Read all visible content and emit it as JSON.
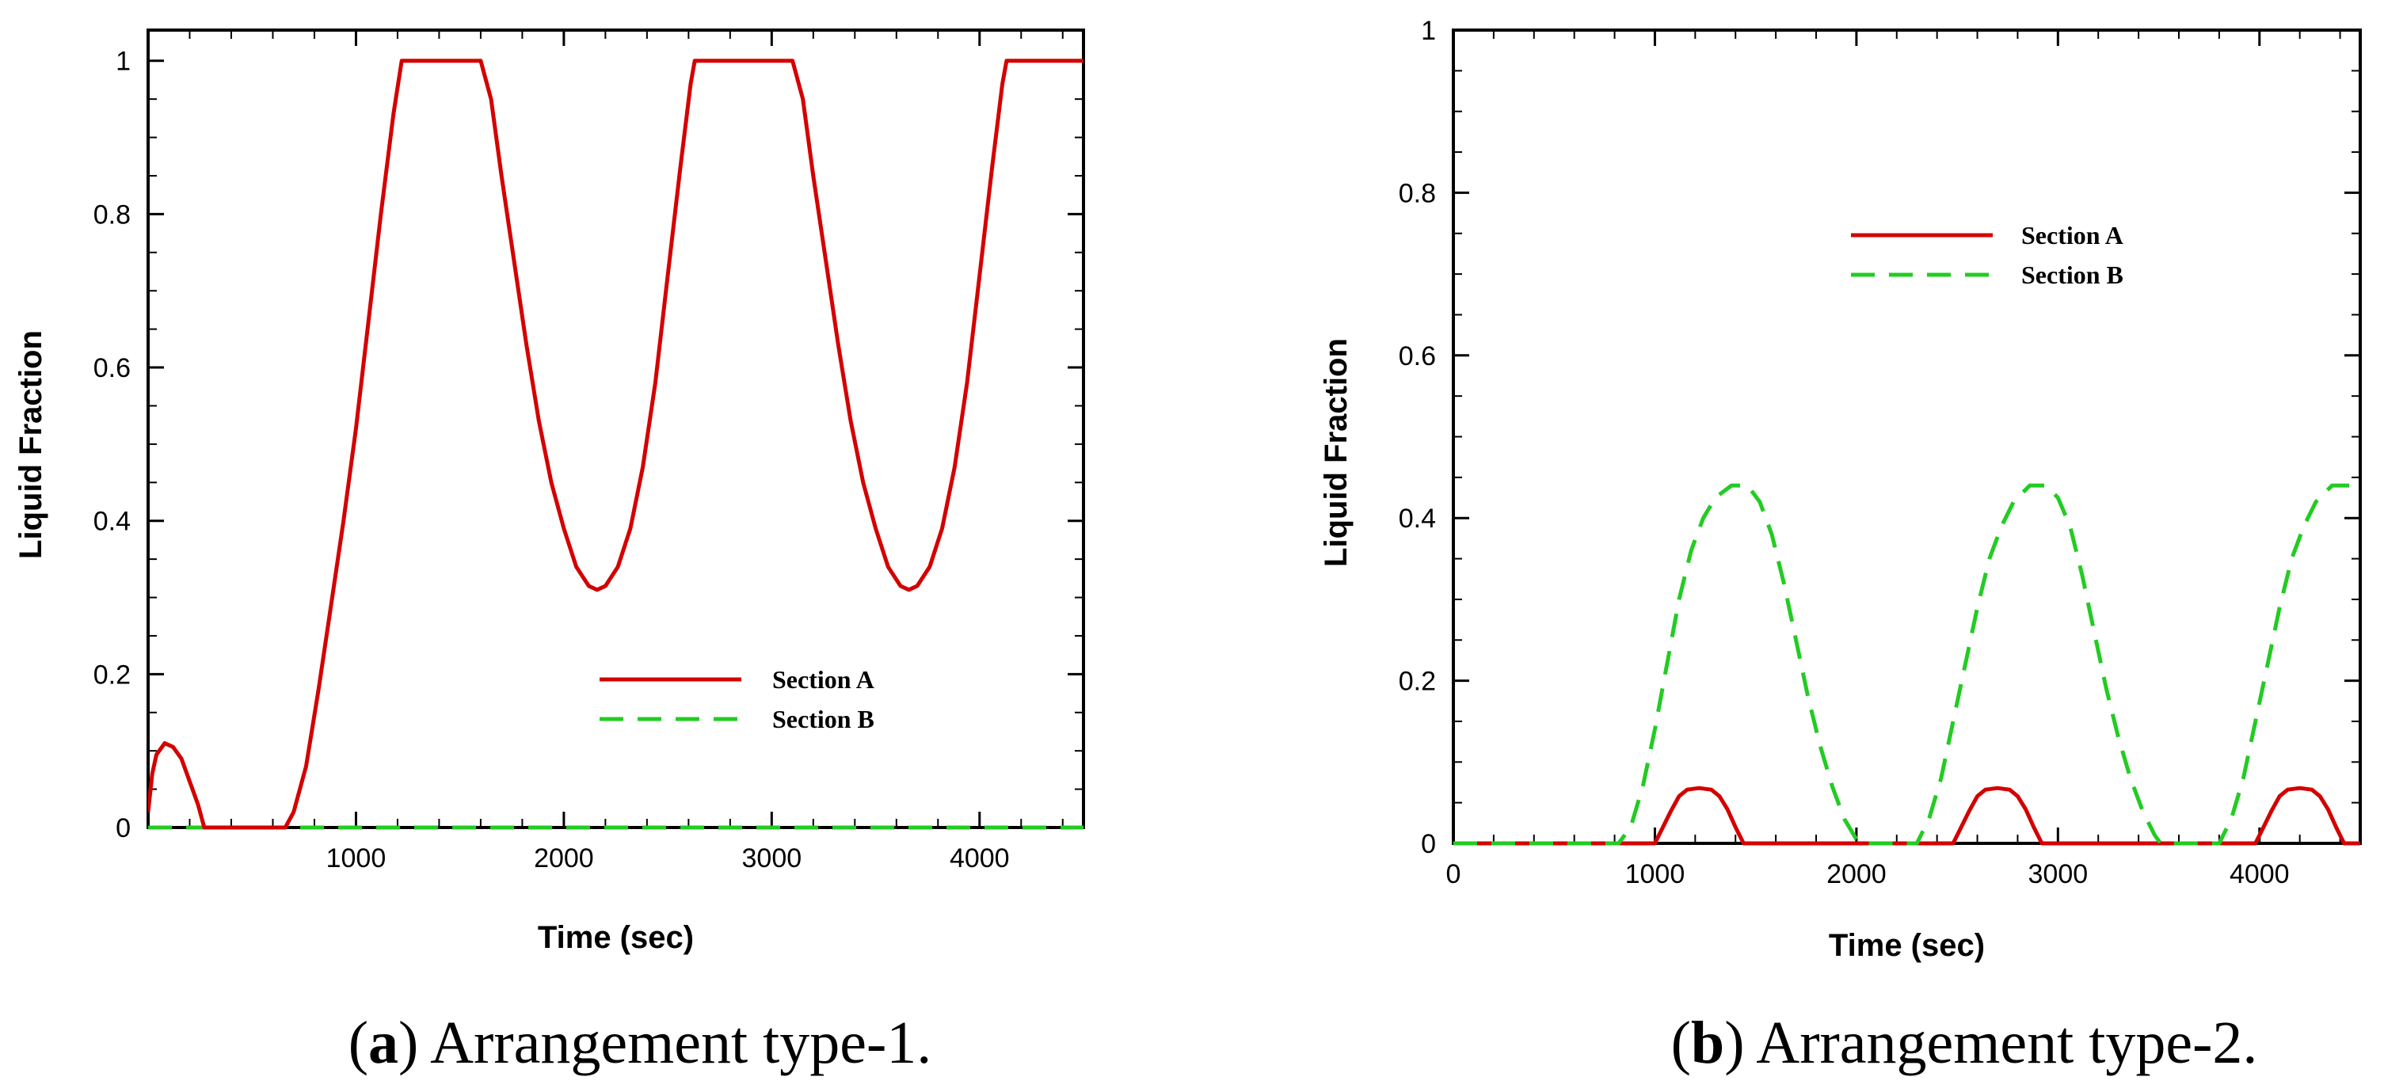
{
  "chart_data": [
    {
      "type": "line",
      "panel_caption": {
        "letter": "a",
        "open": "(",
        "close": ")",
        "text": " Arrangement type-1."
      },
      "xlabel": "Time (sec)",
      "ylabel": "Liquid Fraction",
      "xlim": [
        0,
        4500
      ],
      "ylim": [
        0,
        1.04
      ],
      "x_ticks": [
        1000,
        2000,
        3000,
        4000
      ],
      "x_tick_labels": [
        "1000",
        "2000",
        "3000",
        "4000"
      ],
      "y_ticks": [
        0,
        0.2,
        0.4,
        0.6,
        0.8,
        1
      ],
      "y_tick_labels": [
        "0",
        "0.2",
        "0.4",
        "0.6",
        "0.8",
        "1"
      ],
      "legend_position": "center-right",
      "series": [
        {
          "name": "Section A",
          "color": "#d40000",
          "style": "solid",
          "points": [
            [
              0,
              0.02
            ],
            [
              20,
              0.07
            ],
            [
              40,
              0.095
            ],
            [
              80,
              0.11
            ],
            [
              120,
              0.105
            ],
            [
              160,
              0.09
            ],
            [
              200,
              0.06
            ],
            [
              240,
              0.03
            ],
            [
              270,
              0
            ],
            [
              400,
              0
            ],
            [
              520,
              0
            ],
            [
              660,
              0
            ],
            [
              700,
              0.02
            ],
            [
              760,
              0.08
            ],
            [
              820,
              0.18
            ],
            [
              880,
              0.29
            ],
            [
              940,
              0.4
            ],
            [
              1000,
              0.52
            ],
            [
              1060,
              0.66
            ],
            [
              1120,
              0.8
            ],
            [
              1180,
              0.93
            ],
            [
              1220,
              1
            ],
            [
              1600,
              1
            ],
            [
              1650,
              0.95
            ],
            [
              1700,
              0.85
            ],
            [
              1760,
              0.74
            ],
            [
              1820,
              0.63
            ],
            [
              1880,
              0.53
            ],
            [
              1940,
              0.45
            ],
            [
              2000,
              0.39
            ],
            [
              2060,
              0.34
            ],
            [
              2120,
              0.315
            ],
            [
              2160,
              0.31
            ],
            [
              2200,
              0.315
            ],
            [
              2260,
              0.34
            ],
            [
              2320,
              0.39
            ],
            [
              2380,
              0.47
            ],
            [
              2440,
              0.58
            ],
            [
              2500,
              0.72
            ],
            [
              2560,
              0.86
            ],
            [
              2610,
              0.97
            ],
            [
              2630,
              1
            ],
            [
              3100,
              1
            ],
            [
              3150,
              0.95
            ],
            [
              3200,
              0.85
            ],
            [
              3260,
              0.74
            ],
            [
              3320,
              0.63
            ],
            [
              3380,
              0.53
            ],
            [
              3440,
              0.45
            ],
            [
              3500,
              0.39
            ],
            [
              3560,
              0.34
            ],
            [
              3620,
              0.315
            ],
            [
              3660,
              0.31
            ],
            [
              3700,
              0.315
            ],
            [
              3760,
              0.34
            ],
            [
              3820,
              0.39
            ],
            [
              3880,
              0.47
            ],
            [
              3940,
              0.58
            ],
            [
              4000,
              0.72
            ],
            [
              4060,
              0.86
            ],
            [
              4110,
              0.97
            ],
            [
              4130,
              1
            ],
            [
              4500,
              1
            ]
          ]
        },
        {
          "name": "Section B",
          "color": "#22cc22",
          "style": "dashed",
          "points": [
            [
              0,
              0
            ],
            [
              4500,
              0
            ]
          ]
        }
      ]
    },
    {
      "type": "line",
      "panel_caption": {
        "letter": "b",
        "open": "(",
        "close": ")",
        "text": " Arrangement type-2."
      },
      "xlabel": "Time (sec)",
      "ylabel": "Liquid Fraction",
      "xlim": [
        0,
        4500
      ],
      "ylim": [
        0,
        1
      ],
      "x_ticks": [
        0,
        1000,
        2000,
        3000,
        4000
      ],
      "x_tick_labels": [
        "0",
        "1000",
        "2000",
        "3000",
        "4000"
      ],
      "y_ticks": [
        0,
        0.2,
        0.4,
        0.6,
        0.8,
        1
      ],
      "y_tick_labels": [
        "0",
        "0.2",
        "0.4",
        "0.6",
        "0.8",
        "1"
      ],
      "legend_position": "top-center",
      "series": [
        {
          "name": "Section A",
          "color": "#d40000",
          "style": "solid",
          "points": [
            [
              0,
              0
            ],
            [
              1000,
              0
            ],
            [
              1040,
              0.02
            ],
            [
              1080,
              0.04
            ],
            [
              1120,
              0.058
            ],
            [
              1160,
              0.066
            ],
            [
              1220,
              0.068
            ],
            [
              1280,
              0.066
            ],
            [
              1320,
              0.058
            ],
            [
              1360,
              0.042
            ],
            [
              1400,
              0.02
            ],
            [
              1440,
              0
            ],
            [
              2480,
              0
            ],
            [
              2520,
              0.02
            ],
            [
              2560,
              0.04
            ],
            [
              2600,
              0.058
            ],
            [
              2640,
              0.066
            ],
            [
              2700,
              0.068
            ],
            [
              2760,
              0.066
            ],
            [
              2800,
              0.058
            ],
            [
              2840,
              0.042
            ],
            [
              2880,
              0.02
            ],
            [
              2920,
              0
            ],
            [
              3980,
              0
            ],
            [
              4020,
              0.02
            ],
            [
              4060,
              0.04
            ],
            [
              4100,
              0.058
            ],
            [
              4140,
              0.066
            ],
            [
              4200,
              0.068
            ],
            [
              4260,
              0.066
            ],
            [
              4300,
              0.058
            ],
            [
              4340,
              0.042
            ],
            [
              4380,
              0.02
            ],
            [
              4420,
              0
            ],
            [
              4500,
              0
            ]
          ]
        },
        {
          "name": "Section B",
          "color": "#22cc22",
          "style": "dashed",
          "points": [
            [
              0,
              0
            ],
            [
              820,
              0
            ],
            [
              880,
              0.02
            ],
            [
              940,
              0.07
            ],
            [
              1000,
              0.14
            ],
            [
              1060,
              0.22
            ],
            [
              1120,
              0.3
            ],
            [
              1180,
              0.36
            ],
            [
              1240,
              0.4
            ],
            [
              1300,
              0.425
            ],
            [
              1380,
              0.44
            ],
            [
              1460,
              0.44
            ],
            [
              1520,
              0.42
            ],
            [
              1580,
              0.38
            ],
            [
              1640,
              0.32
            ],
            [
              1700,
              0.25
            ],
            [
              1760,
              0.18
            ],
            [
              1820,
              0.12
            ],
            [
              1880,
              0.07
            ],
            [
              1940,
              0.03
            ],
            [
              2000,
              0.005
            ],
            [
              2020,
              0
            ],
            [
              2300,
              0
            ],
            [
              2360,
              0.03
            ],
            [
              2420,
              0.08
            ],
            [
              2480,
              0.15
            ],
            [
              2540,
              0.22
            ],
            [
              2600,
              0.29
            ],
            [
              2660,
              0.35
            ],
            [
              2720,
              0.39
            ],
            [
              2780,
              0.42
            ],
            [
              2860,
              0.44
            ],
            [
              2940,
              0.44
            ],
            [
              3000,
              0.425
            ],
            [
              3060,
              0.39
            ],
            [
              3120,
              0.33
            ],
            [
              3180,
              0.26
            ],
            [
              3240,
              0.19
            ],
            [
              3300,
              0.13
            ],
            [
              3360,
              0.08
            ],
            [
              3420,
              0.04
            ],
            [
              3480,
              0.01
            ],
            [
              3510,
              0
            ],
            [
              3800,
              0
            ],
            [
              3860,
              0.03
            ],
            [
              3920,
              0.08
            ],
            [
              3980,
              0.15
            ],
            [
              4040,
              0.22
            ],
            [
              4100,
              0.29
            ],
            [
              4160,
              0.35
            ],
            [
              4220,
              0.39
            ],
            [
              4280,
              0.42
            ],
            [
              4360,
              0.44
            ],
            [
              4440,
              0.44
            ],
            [
              4500,
              0.44
            ]
          ]
        }
      ]
    }
  ]
}
